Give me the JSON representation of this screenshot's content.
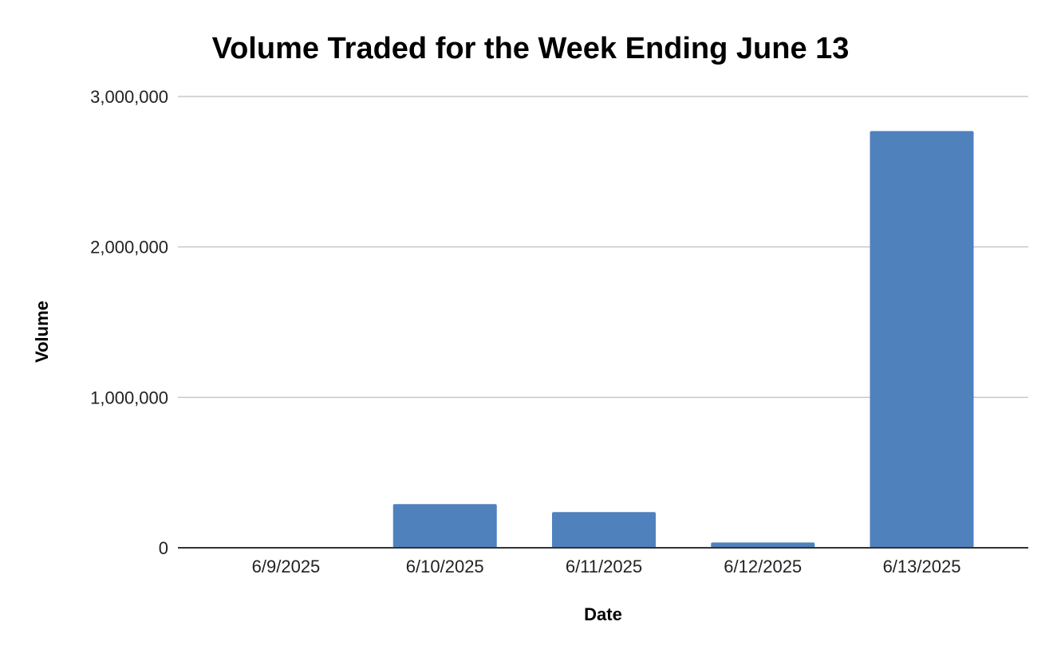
{
  "chart_data": {
    "type": "bar",
    "title": "Volume Traded for the Week Ending June 13",
    "xlabel": "Date",
    "ylabel": "Volume",
    "categories": [
      "6/9/2025",
      "6/10/2025",
      "6/11/2025",
      "6/12/2025",
      "6/13/2025"
    ],
    "values": [
      0,
      290000,
      237000,
      35000,
      2770000
    ],
    "ylim": [
      0,
      3000000
    ],
    "yticks": [
      0,
      1000000,
      2000000,
      3000000
    ],
    "ytick_labels": [
      "0",
      "1,000,000",
      "2,000,000",
      "3,000,000"
    ],
    "grid": true,
    "legend": "none",
    "bar_color": "#4f81bd"
  }
}
